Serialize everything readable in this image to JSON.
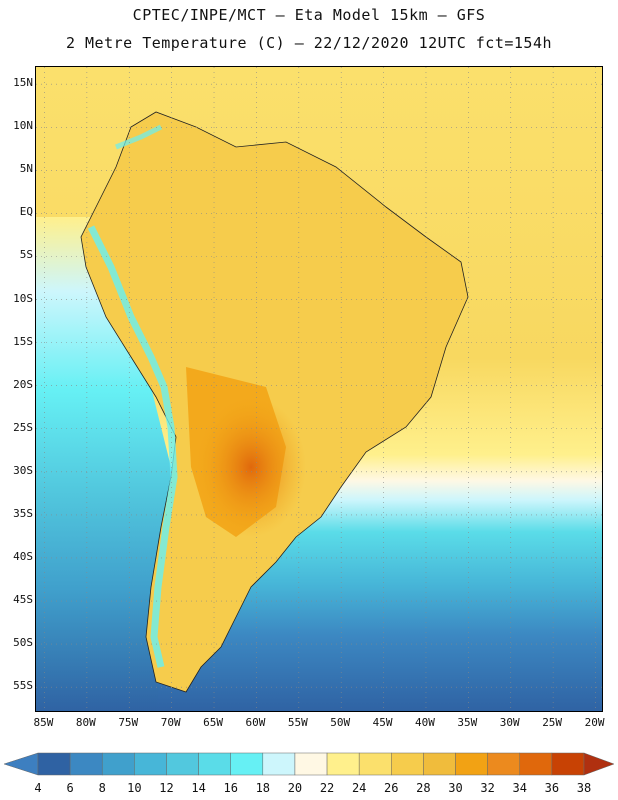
{
  "title": {
    "line1": "CPTEC/INPE/MCT –  Eta Model 15km – GFS",
    "line2": "2 Metre Temperature (C) – 22/12/2020 12UTC fct=154h"
  },
  "map": {
    "region": "South America",
    "lon_range": [
      -86,
      -19
    ],
    "lat_range": [
      -58,
      17
    ],
    "lat_labels": [
      {
        "lat": 15,
        "text": "15N"
      },
      {
        "lat": 10,
        "text": "10N"
      },
      {
        "lat": 5,
        "text": "5N"
      },
      {
        "lat": 0,
        "text": "EQ"
      },
      {
        "lat": -5,
        "text": "5S"
      },
      {
        "lat": -10,
        "text": "10S"
      },
      {
        "lat": -15,
        "text": "15S"
      },
      {
        "lat": -20,
        "text": "20S"
      },
      {
        "lat": -25,
        "text": "25S"
      },
      {
        "lat": -30,
        "text": "30S"
      },
      {
        "lat": -35,
        "text": "35S"
      },
      {
        "lat": -40,
        "text": "40S"
      },
      {
        "lat": -45,
        "text": "45S"
      },
      {
        "lat": -50,
        "text": "50S"
      },
      {
        "lat": -55,
        "text": "55S"
      }
    ],
    "lon_labels": [
      {
        "lon": -85,
        "text": "85W"
      },
      {
        "lon": -80,
        "text": "80W"
      },
      {
        "lon": -75,
        "text": "75W"
      },
      {
        "lon": -70,
        "text": "70W"
      },
      {
        "lon": -65,
        "text": "65W"
      },
      {
        "lon": -60,
        "text": "60W"
      },
      {
        "lon": -55,
        "text": "55W"
      },
      {
        "lon": -50,
        "text": "50W"
      },
      {
        "lon": -45,
        "text": "45W"
      },
      {
        "lon": -40,
        "text": "40W"
      },
      {
        "lon": -35,
        "text": "35W"
      },
      {
        "lon": -30,
        "text": "30W"
      },
      {
        "lon": -25,
        "text": "25W"
      },
      {
        "lon": -20,
        "text": "20W"
      }
    ]
  },
  "colorbar": {
    "levels": [
      "4",
      "6",
      "8",
      "10",
      "12",
      "14",
      "16",
      "18",
      "20",
      "22",
      "24",
      "26",
      "28",
      "30",
      "32",
      "34",
      "36",
      "38"
    ],
    "colors": [
      "#3d7fc0",
      "#2f62a3",
      "#3c88c2",
      "#40a0cc",
      "#47b6d8",
      "#52c8de",
      "#5adce8",
      "#66f0f4",
      "#cdf6fc",
      "#fff8e4",
      "#fff08c",
      "#fbe06c",
      "#f6cc4c",
      "#f0bc3c",
      "#f2a214",
      "#ec8a1e",
      "#e0680c",
      "#c84204",
      "#b03010"
    ]
  }
}
